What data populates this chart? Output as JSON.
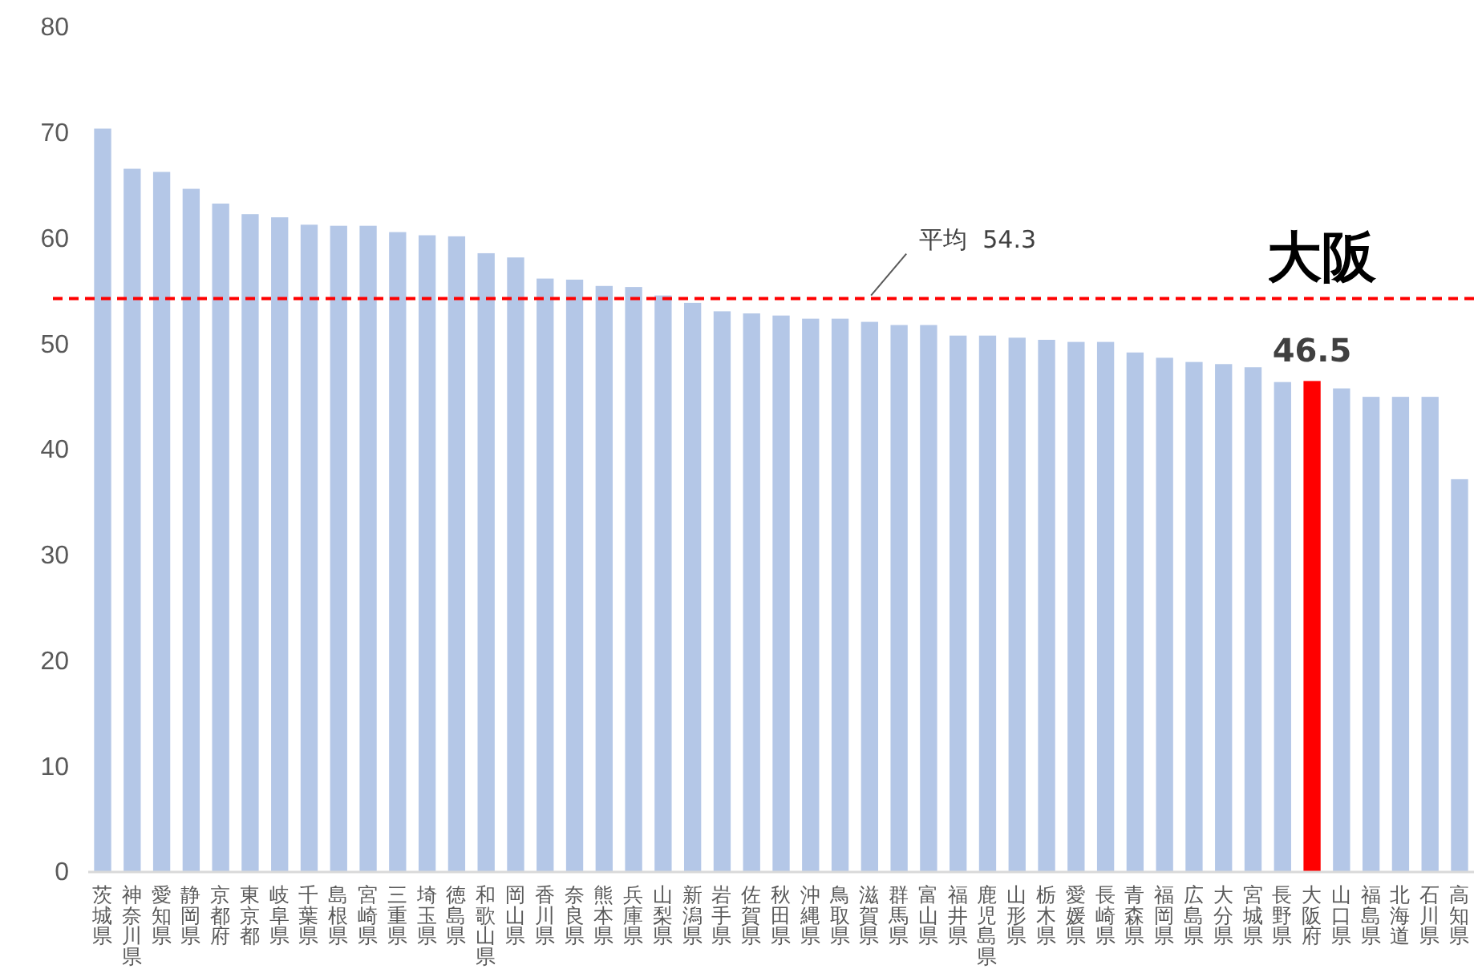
{
  "chart_data": {
    "type": "bar",
    "categories": [
      "茨城県",
      "神奈川県",
      "愛知県",
      "静岡県",
      "京都府",
      "東京都",
      "岐阜県",
      "千葉県",
      "島根県",
      "宮崎県",
      "三重県",
      "埼玉県",
      "徳島県",
      "和歌山県",
      "岡山県",
      "香川県",
      "奈良県",
      "熊本県",
      "兵庫県",
      "山梨県",
      "新潟県",
      "岩手県",
      "佐賀県",
      "秋田県",
      "沖縄県",
      "鳥取県",
      "滋賀県",
      "群馬県",
      "富山県",
      "福井県",
      "鹿児島県",
      "山形県",
      "栃木県",
      "愛媛県",
      "長崎県",
      "青森県",
      "福岡県",
      "広島県",
      "大分県",
      "宮城県",
      "長野県",
      "大阪府",
      "山口県",
      "福島県",
      "北海道",
      "石川県",
      "高知県"
    ],
    "values": [
      70.4,
      66.6,
      66.3,
      64.7,
      63.3,
      62.3,
      62.0,
      61.3,
      61.2,
      61.2,
      60.6,
      60.3,
      60.2,
      58.6,
      58.2,
      56.2,
      56.1,
      55.5,
      55.4,
      54.6,
      53.9,
      53.1,
      52.9,
      52.7,
      52.4,
      52.4,
      52.1,
      51.8,
      51.8,
      50.8,
      50.8,
      50.6,
      50.4,
      50.2,
      50.2,
      49.2,
      48.7,
      48.3,
      48.1,
      47.8,
      46.4,
      46.5,
      45.8,
      45.0,
      45.0,
      45.0,
      37.2
    ],
    "colors": [
      "#b4c7e7",
      "#b4c7e7",
      "#b4c7e7",
      "#b4c7e7",
      "#b4c7e7",
      "#b4c7e7",
      "#b4c7e7",
      "#b4c7e7",
      "#b4c7e7",
      "#b4c7e7",
      "#b4c7e7",
      "#b4c7e7",
      "#b4c7e7",
      "#b4c7e7",
      "#b4c7e7",
      "#b4c7e7",
      "#b4c7e7",
      "#b4c7e7",
      "#b4c7e7",
      "#b4c7e7",
      "#b4c7e7",
      "#b4c7e7",
      "#b4c7e7",
      "#b4c7e7",
      "#b4c7e7",
      "#b4c7e7",
      "#b4c7e7",
      "#b4c7e7",
      "#b4c7e7",
      "#b4c7e7",
      "#b4c7e7",
      "#b4c7e7",
      "#b4c7e7",
      "#b4c7e7",
      "#b4c7e7",
      "#b4c7e7",
      "#b4c7e7",
      "#b4c7e7",
      "#b4c7e7",
      "#b4c7e7",
      "#b4c7e7",
      "#ff0000",
      "#b4c7e7",
      "#b4c7e7",
      "#b4c7e7",
      "#b4c7e7",
      "#b4c7e7"
    ],
    "value_labels": [
      null,
      null,
      null,
      null,
      null,
      null,
      null,
      null,
      null,
      null,
      null,
      null,
      null,
      null,
      null,
      null,
      null,
      null,
      null,
      null,
      null,
      null,
      null,
      null,
      null,
      null,
      null,
      null,
      null,
      null,
      null,
      null,
      null,
      null,
      null,
      null,
      null,
      null,
      null,
      null,
      null,
      "46.5",
      null,
      null,
      null,
      null,
      null
    ],
    "ylim": [
      0,
      80
    ],
    "yticks": [
      0,
      10,
      20,
      30,
      40,
      50,
      60,
      70,
      80
    ],
    "grid": false,
    "ref_lines": [
      {
        "axis": "y",
        "value": 54.3,
        "label": "平均  54.3",
        "color": "#ff0000",
        "line_style": "dashed"
      }
    ],
    "annotations": [
      "大阪"
    ]
  }
}
